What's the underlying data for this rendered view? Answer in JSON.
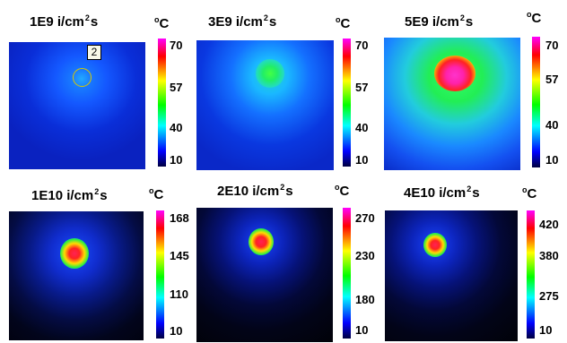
{
  "degree_label": "o",
  "unit_label": "C",
  "panels": [
    {
      "dose": "1E9",
      "unit_prefix": "i/cm",
      "unit_exp": "2",
      "unit_suffix": "s",
      "ticks": [
        "70",
        "57",
        "40",
        "10"
      ]
    },
    {
      "dose": "3E9",
      "unit_prefix": "i/cm",
      "unit_exp": "2",
      "unit_suffix": "s",
      "ticks": [
        "70",
        "57",
        "40",
        "10"
      ]
    },
    {
      "dose": "5E9",
      "unit_prefix": "i/cm",
      "unit_exp": "2",
      "unit_suffix": "s",
      "ticks": [
        "70",
        "57",
        "40",
        "10"
      ]
    },
    {
      "dose": "1E10",
      "unit_prefix": "i/cm",
      "unit_exp": "2",
      "unit_suffix": "s",
      "ticks": [
        "168",
        "145",
        "110",
        "10"
      ]
    },
    {
      "dose": "2E10",
      "unit_prefix": "i/cm",
      "unit_exp": "2",
      "unit_suffix": "s",
      "ticks": [
        "270",
        "230",
        "180",
        "10"
      ]
    },
    {
      "dose": "4E10",
      "unit_prefix": "i/cm",
      "unit_exp": "2",
      "unit_suffix": "s",
      "ticks": [
        "420",
        "380",
        "275",
        "10"
      ]
    }
  ],
  "marker": {
    "label": "2"
  },
  "colors": {
    "hot": "#ff00ff",
    "warm": "#ff0000",
    "mid": "#ffff00",
    "cool": "#00ff00",
    "cold": "#0000ff",
    "background_low": "#000030"
  }
}
